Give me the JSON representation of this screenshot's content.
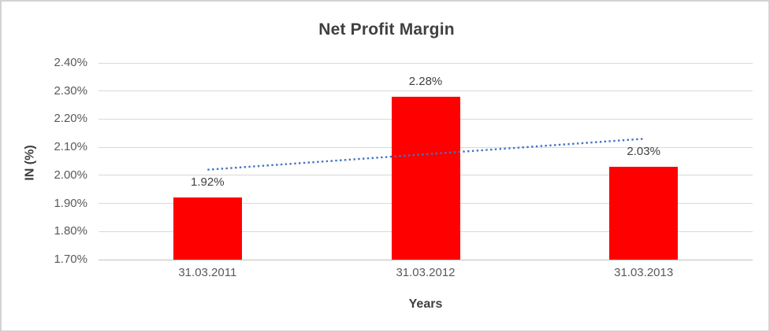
{
  "chart_data": {
    "type": "bar",
    "title": "Net Profit Margin",
    "xlabel": "Years",
    "ylabel": "IN (%)",
    "categories": [
      "31.03.2011",
      "31.03.2012",
      "31.03.2013"
    ],
    "values": [
      1.92,
      2.28,
      2.03
    ],
    "data_labels": [
      "1.92%",
      "2.28%",
      "2.03%"
    ],
    "y_ticks": [
      2.4,
      2.3,
      2.2,
      2.1,
      2.0,
      1.9,
      1.8,
      1.7
    ],
    "y_tick_labels": [
      "2.40%",
      "2.30%",
      "2.20%",
      "2.10%",
      "2.00%",
      "1.90%",
      "1.80%",
      "1.70%"
    ],
    "ylim": [
      1.7,
      2.4
    ],
    "grid": true,
    "legend": "none",
    "bar_color": "#ff0000",
    "trendline": {
      "type": "linear",
      "style": "dotted",
      "color": "#4472c4",
      "start_value": 2.02,
      "end_value": 2.13
    }
  }
}
